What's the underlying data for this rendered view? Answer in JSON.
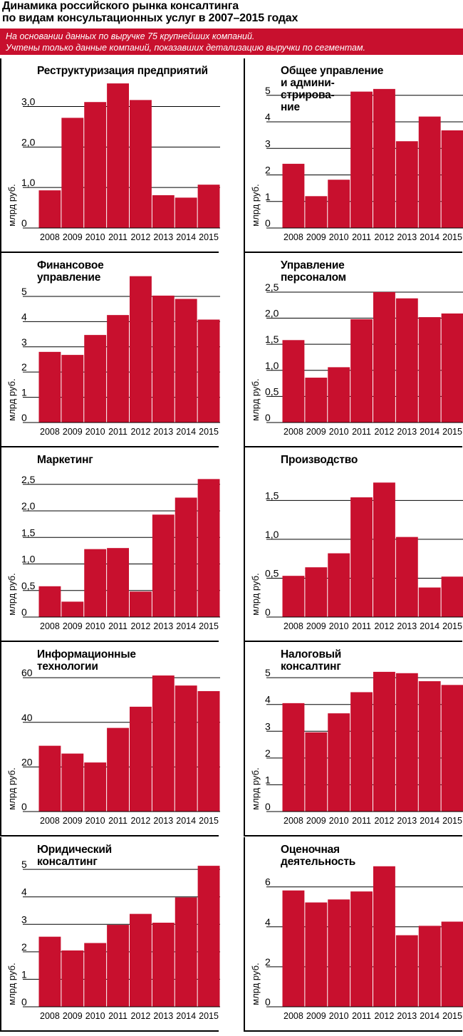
{
  "header": {
    "title_line1": "Динамика российского рынка консалтинга",
    "title_line2": "по видам консультационных услуг в 2007–2015 годах"
  },
  "banner": {
    "line1": "На основании данных по выручке 75 крупнейших компаний.",
    "line2": "Учтены только данные компаний, показавших детализацию выручки по сегментам."
  },
  "colors": {
    "bar": "#c8102e",
    "banner": "#c8102e"
  },
  "chart_data": [
    {
      "type": "bar",
      "title_lines": [
        "Реструктуризация предприятий"
      ],
      "ylabel": "млрд руб.",
      "categories": [
        "2008",
        "2009",
        "2010",
        "2011",
        "2012",
        "2013",
        "2014",
        "2015"
      ],
      "values": [
        0.93,
        2.72,
        3.11,
        3.57,
        3.16,
        0.81,
        0.75,
        1.07
      ],
      "ylim": [
        0,
        3.8
      ],
      "ticks": [
        0,
        1.0,
        2.0,
        3.0
      ],
      "tick_labels": [
        "0",
        "1,0",
        "2,0",
        "3,0"
      ]
    },
    {
      "type": "bar",
      "title_lines": [
        "Общее управление",
        "и админи-",
        "стрирова-",
        "ние"
      ],
      "ylabel": "млрд руб.",
      "categories": [
        "2008",
        "2009",
        "2010",
        "2011",
        "2012",
        "2013",
        "2014",
        "2015"
      ],
      "values": [
        2.42,
        1.2,
        1.82,
        5.14,
        5.24,
        3.27,
        4.2,
        3.68
      ],
      "ylim": [
        0,
        5.8
      ],
      "ticks": [
        0,
        1,
        2,
        3,
        4,
        5
      ],
      "tick_labels": [
        "0",
        "1",
        "2",
        "3",
        "4",
        "5"
      ]
    },
    {
      "type": "bar",
      "title_lines": [
        "Финансовое",
        "управление"
      ],
      "ylabel": "млрд руб.",
      "categories": [
        "2008",
        "2009",
        "2010",
        "2011",
        "2012",
        "2013",
        "2014",
        "2015"
      ],
      "values": [
        2.8,
        2.68,
        3.47,
        4.26,
        5.8,
        5.03,
        4.9,
        4.08
      ],
      "ylim": [
        0,
        6.1
      ],
      "ticks": [
        0,
        1,
        2,
        3,
        4,
        5
      ],
      "tick_labels": [
        "0",
        "1",
        "2",
        "3",
        "4",
        "5"
      ]
    },
    {
      "type": "bar",
      "title_lines": [
        "Управление",
        "персоналом"
      ],
      "ylabel": "млрд руб.",
      "categories": [
        "2008",
        "2009",
        "2010",
        "2011",
        "2012",
        "2013",
        "2014",
        "2015"
      ],
      "values": [
        1.58,
        0.86,
        1.06,
        1.98,
        2.5,
        2.38,
        2.02,
        2.09
      ],
      "ylim": [
        0,
        2.95
      ],
      "ticks": [
        0,
        0.5,
        1.0,
        1.5,
        2.0,
        2.5
      ],
      "tick_labels": [
        "0",
        "0,5",
        "1,0",
        "1,5",
        "2,0",
        "2,5"
      ]
    },
    {
      "type": "bar",
      "title_lines": [
        "Маркетинг"
      ],
      "ylabel": "млрд руб.",
      "categories": [
        "2008",
        "2009",
        "2010",
        "2011",
        "2012",
        "2013",
        "2014",
        "2015"
      ],
      "values": [
        0.58,
        0.29,
        1.28,
        1.3,
        0.48,
        1.93,
        2.25,
        2.6
      ],
      "ylim": [
        0,
        2.9
      ],
      "ticks": [
        0,
        0.5,
        1.0,
        1.5,
        2.0,
        2.5
      ],
      "tick_labels": [
        "0",
        "0,5",
        "1,0",
        "1,5",
        "2,0",
        "2,5"
      ]
    },
    {
      "type": "bar",
      "title_lines": [
        "Производство"
      ],
      "ylabel": "млрд руб.",
      "categories": [
        "2008",
        "2009",
        "2010",
        "2011",
        "2012",
        "2013",
        "2014",
        "2015"
      ],
      "values": [
        0.53,
        0.64,
        0.82,
        1.54,
        1.73,
        1.03,
        0.38,
        0.52
      ],
      "ylim": [
        0,
        1.98
      ],
      "ticks": [
        0,
        0.5,
        1.0,
        1.5
      ],
      "tick_labels": [
        "0",
        "0,5",
        "1,0",
        "1,5"
      ]
    },
    {
      "type": "bar",
      "title_lines": [
        "Информационные",
        "технологии"
      ],
      "ylabel": "млрд руб.",
      "categories": [
        "2008",
        "2009",
        "2010",
        "2011",
        "2012",
        "2013",
        "2014",
        "2015"
      ],
      "values": [
        29.5,
        26.0,
        22.0,
        37.5,
        47.0,
        61.0,
        56.5,
        54.0
      ],
      "ylim": [
        0,
        69
      ],
      "ticks": [
        0,
        20,
        40,
        60
      ],
      "tick_labels": [
        "0",
        "20",
        "40",
        "60"
      ]
    },
    {
      "type": "bar",
      "title_lines": [
        "Налоговый",
        "консалтинг"
      ],
      "ylabel": "млрд руб.",
      "categories": [
        "2008",
        "2009",
        "2010",
        "2011",
        "2012",
        "2013",
        "2014",
        "2015"
      ],
      "values": [
        4.05,
        2.96,
        3.67,
        4.46,
        5.22,
        5.17,
        4.87,
        4.73
      ],
      "ylim": [
        0,
        5.75
      ],
      "ticks": [
        0,
        1,
        2,
        3,
        4,
        5
      ],
      "tick_labels": [
        "0",
        "1",
        "2",
        "3",
        "4",
        "5"
      ]
    },
    {
      "type": "bar",
      "title_lines": [
        "Юридический",
        "консалтинг"
      ],
      "ylabel": "млрд руб.",
      "categories": [
        "2008",
        "2009",
        "2010",
        "2011",
        "2012",
        "2013",
        "2014",
        "2015"
      ],
      "values": [
        2.55,
        2.05,
        2.32,
        2.98,
        3.38,
        3.06,
        3.98,
        5.13
      ],
      "ylim": [
        0,
        5.6
      ],
      "ticks": [
        0,
        1,
        2,
        3,
        4,
        5
      ],
      "tick_labels": [
        "0",
        "1",
        "2",
        "3",
        "4",
        "5"
      ]
    },
    {
      "type": "bar",
      "title_lines": [
        "Оценочная",
        "деятельность"
      ],
      "ylabel": "млрд руб.",
      "categories": [
        "2008",
        "2009",
        "2010",
        "2011",
        "2012",
        "2013",
        "2014",
        "2015"
      ],
      "values": [
        5.82,
        5.22,
        5.37,
        5.77,
        7.03,
        3.58,
        4.05,
        4.26
      ],
      "ylim": [
        0,
        7.7
      ],
      "ticks": [
        0,
        2,
        4,
        6
      ],
      "tick_labels": [
        "0",
        "2",
        "4",
        "6"
      ]
    }
  ]
}
